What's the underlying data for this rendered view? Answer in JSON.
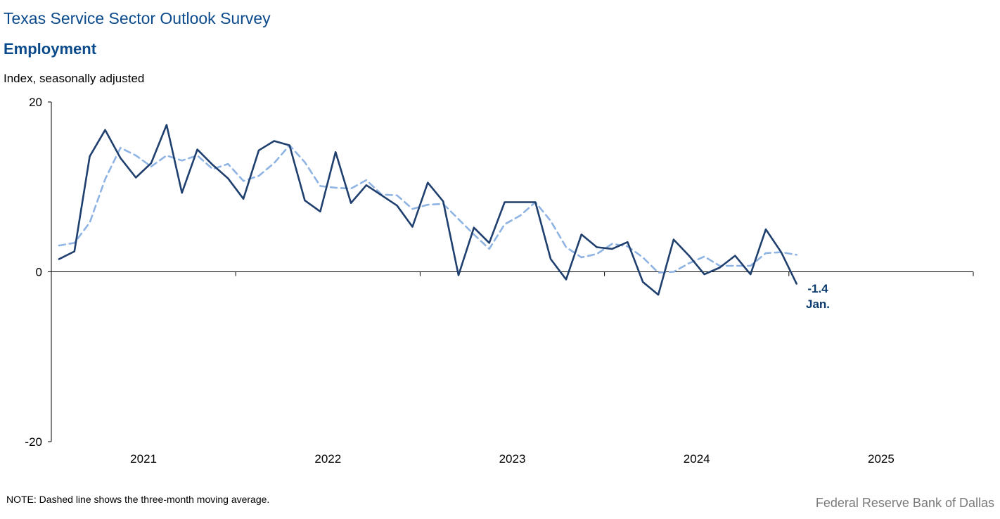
{
  "header": {
    "title": "Texas Service Sector Outlook Survey",
    "subtitle": "Employment",
    "ylabel": "Index, seasonally adjusted"
  },
  "footer": {
    "note": "NOTE: Dashed line shows the three-month  moving average.",
    "source": "Federal Reserve Bank of Dallas"
  },
  "colors": {
    "index_line": "#1f3f6e",
    "moving_average_line": "#8fb4e3",
    "axis": "#000000"
  },
  "annotation": {
    "value": "-1.4",
    "label": "Jan."
  },
  "chart_data": {
    "type": "line",
    "title": "Employment",
    "ylabel": "Index, seasonally adjusted",
    "ylim": [
      -20,
      20
    ],
    "yticks": [
      "20",
      "0",
      "-20"
    ],
    "xticks": [
      "2021",
      "2022",
      "2023",
      "2024",
      "2025"
    ],
    "xrange": [
      "2021-01",
      "2026-01"
    ],
    "grid": false,
    "x": [
      "2021-01",
      "2021-02",
      "2021-03",
      "2021-04",
      "2021-05",
      "2021-06",
      "2021-07",
      "2021-08",
      "2021-09",
      "2021-10",
      "2021-11",
      "2021-12",
      "2022-01",
      "2022-02",
      "2022-03",
      "2022-04",
      "2022-05",
      "2022-06",
      "2022-07",
      "2022-08",
      "2022-09",
      "2022-10",
      "2022-11",
      "2022-12",
      "2023-01",
      "2023-02",
      "2023-03",
      "2023-04",
      "2023-05",
      "2023-06",
      "2023-07",
      "2023-08",
      "2023-09",
      "2023-10",
      "2023-11",
      "2023-12",
      "2024-01",
      "2024-02",
      "2024-03",
      "2024-04",
      "2024-05",
      "2024-06",
      "2024-07",
      "2024-08",
      "2024-09",
      "2024-10",
      "2024-11",
      "2024-12",
      "2025-01"
    ],
    "series": [
      {
        "style": "solid",
        "values": [
          1.5,
          2.4,
          13.6,
          16.7,
          13.4,
          11.1,
          12.8,
          17.3,
          9.3,
          14.4,
          12.6,
          11.0,
          8.6,
          14.3,
          15.4,
          14.9,
          8.4,
          7.1,
          14.1,
          8.1,
          10.2,
          9.0,
          7.8,
          5.3,
          10.5,
          8.3,
          -0.4,
          5.2,
          3.4,
          8.2,
          8.2,
          8.2,
          1.5,
          -0.9,
          4.4,
          2.9,
          2.7,
          3.5,
          -1.2,
          -2.7,
          3.8,
          1.9,
          -0.3,
          0.5,
          1.9,
          -0.3,
          5.0,
          2.3,
          -1.4
        ]
      },
      {
        "style": "dashed",
        "values": [
          3.1,
          3.4,
          5.8,
          10.9,
          14.6,
          13.7,
          12.4,
          13.7,
          13.1,
          13.7,
          12.1,
          12.7,
          10.7,
          11.3,
          12.8,
          14.9,
          12.9,
          10.1,
          9.9,
          9.8,
          10.8,
          9.1,
          9.0,
          7.4,
          7.9,
          8.0,
          6.2,
          4.4,
          2.7,
          5.6,
          6.6,
          8.2,
          6.0,
          2.9,
          1.7,
          2.1,
          3.3,
          3.0,
          1.7,
          -0.1,
          -0.0,
          1.0,
          1.8,
          0.7,
          0.7,
          0.7,
          2.2,
          2.3,
          2.0
        ]
      }
    ]
  }
}
